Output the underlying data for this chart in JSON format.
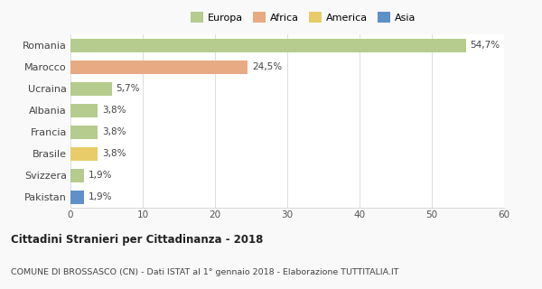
{
  "countries": [
    "Romania",
    "Marocco",
    "Ucraina",
    "Albania",
    "Francia",
    "Brasile",
    "Svizzera",
    "Pakistan"
  ],
  "values": [
    54.7,
    24.5,
    5.7,
    3.8,
    3.8,
    3.8,
    1.9,
    1.9
  ],
  "labels": [
    "54,7%",
    "24,5%",
    "5,7%",
    "3,8%",
    "3,8%",
    "3,8%",
    "1,9%",
    "1,9%"
  ],
  "colors": [
    "#b5cc8e",
    "#e8aa82",
    "#b5cc8e",
    "#b5cc8e",
    "#b5cc8e",
    "#e8cc6a",
    "#b5cc8e",
    "#6090c8"
  ],
  "legend_labels": [
    "Europa",
    "Africa",
    "America",
    "Asia"
  ],
  "legend_colors": [
    "#b5cc8e",
    "#e8aa82",
    "#e8cc6a",
    "#6090c8"
  ],
  "title": "Cittadini Stranieri per Cittadinanza - 2018",
  "subtitle": "COMUNE DI BROSSASCO (CN) - Dati ISTAT al 1° gennaio 2018 - Elaborazione TUTTITALIA.IT",
  "xlim": [
    0,
    60
  ],
  "xticks": [
    0,
    10,
    20,
    30,
    40,
    50,
    60
  ],
  "background_color": "#f9f9f9",
  "bar_background": "#ffffff",
  "bar_height": 0.65
}
